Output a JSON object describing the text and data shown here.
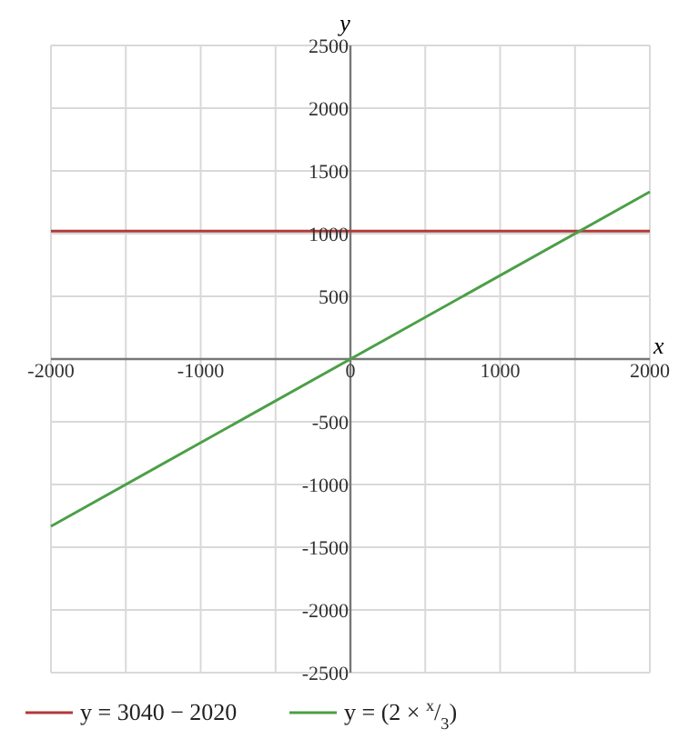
{
  "chart_data": {
    "type": "line",
    "xlabel": "x",
    "ylabel": "y",
    "x": [
      -2000,
      2000
    ],
    "series": [
      {
        "name": "y = 3040 − 2020",
        "color": "#b03a3a",
        "values": [
          1020,
          1020
        ]
      },
      {
        "name": "y = (2 × $^{x}$/$_{3}$)",
        "color": "#4c9f47",
        "values": [
          -1333,
          1333
        ]
      }
    ],
    "xlim": [
      -2000,
      2000
    ],
    "ylim": [
      -2500,
      2500
    ],
    "xticks": [
      -2000,
      {
        "value": -1500,
        "label": null
      },
      -1000,
      {
        "value": -500,
        "label": null
      },
      0,
      {
        "value": 500,
        "label": null
      },
      1000,
      {
        "value": 1500,
        "label": null
      },
      2000
    ],
    "yticks": [
      -2500,
      -2000,
      -1500,
      -1000,
      -500,
      500,
      1000,
      1500,
      2000,
      2500
    ],
    "grid": true,
    "legend": "bottom",
    "marker": "none",
    "line_style": "solid"
  }
}
